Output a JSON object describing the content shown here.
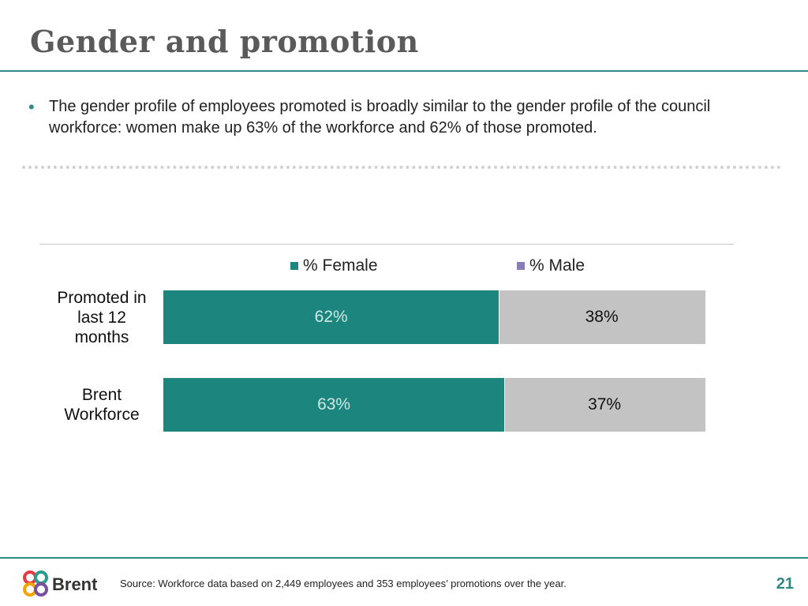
{
  "slide": {
    "title": "Gender and promotion",
    "bullet": "The gender profile of employees promoted is broadly similar to the gender profile of the council workforce: women make up 63% of the workforce and 62% of those promoted.",
    "source": "Source: Workforce data based on 2,449 employees and 353 employees’ promotions over the year.",
    "page_number": "21",
    "logo_text": "Brent",
    "accent_color": "#2e8b84"
  },
  "chart_data": {
    "type": "bar",
    "orientation": "horizontal",
    "stacked": true,
    "percent": true,
    "categories": [
      "Promoted in last 12 months",
      "Brent Workforce"
    ],
    "category_lines": [
      [
        "Promoted in",
        "last 12",
        "months"
      ],
      [
        "Brent",
        "Workforce"
      ]
    ],
    "series": [
      {
        "name": "% Female",
        "values": [
          62,
          63
        ],
        "labels": [
          "62%",
          "63%"
        ],
        "color": "#1b857e",
        "label_color": "#cfe8e5"
      },
      {
        "name": "% Male",
        "values": [
          38,
          37
        ],
        "labels": [
          "38%",
          "37%"
        ],
        "color": "#c3c3c3",
        "label_color": "#111111"
      }
    ],
    "legend_position": "top",
    "grid": false,
    "xlim": [
      0,
      100
    ]
  }
}
